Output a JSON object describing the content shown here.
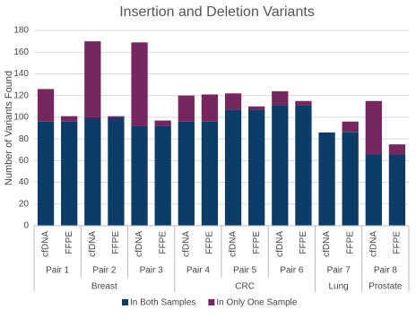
{
  "chart_data": {
    "type": "bar",
    "stacked": true,
    "title": "Insertion and Deletion Variants",
    "y_label": "Number of Variants Found",
    "ylim": [
      0,
      180
    ],
    "yticks": [
      0,
      20,
      40,
      60,
      80,
      100,
      120,
      140,
      160,
      180
    ],
    "grid": true,
    "groups": [
      {
        "name": "Breast",
        "pairs": [
          {
            "name": "Pair 1",
            "categories": [
              "cfDNA",
              "FFPE"
            ]
          },
          {
            "name": "Pair 2",
            "categories": [
              "cfDNA",
              "FFPE"
            ]
          },
          {
            "name": "Pair 3",
            "categories": [
              "cfDNA",
              "FFPE"
            ]
          }
        ]
      },
      {
        "name": "CRC",
        "pairs": [
          {
            "name": "Pair 4",
            "categories": [
              "cfDNA",
              "FFPE"
            ]
          },
          {
            "name": "Pair 5",
            "categories": [
              "cfDNA",
              "FFPE"
            ]
          },
          {
            "name": "Pair 6",
            "categories": [
              "cfDNA",
              "FFPE"
            ]
          }
        ]
      },
      {
        "name": "Lung",
        "pairs": [
          {
            "name": "Pair 7",
            "categories": [
              "cfDNA",
              "FFPE"
            ]
          }
        ]
      },
      {
        "name": "Prostate",
        "pairs": [
          {
            "name": "Pair 8",
            "categories": [
              "cfDNA",
              "FFPE"
            ]
          }
        ]
      }
    ],
    "series": [
      {
        "name": "In Both Samples",
        "color": "#0d3d66",
        "values": [
          96,
          96,
          100,
          100,
          92,
          92,
          96,
          96,
          107,
          107,
          111,
          111,
          86,
          86,
          66,
          66
        ]
      },
      {
        "name": "In Only One Sample",
        "color": "#76285e",
        "values": [
          30,
          5,
          70,
          1,
          77,
          5,
          24,
          25,
          15,
          3,
          13,
          4,
          0,
          10,
          49,
          9
        ]
      }
    ],
    "legend": "bottom"
  }
}
